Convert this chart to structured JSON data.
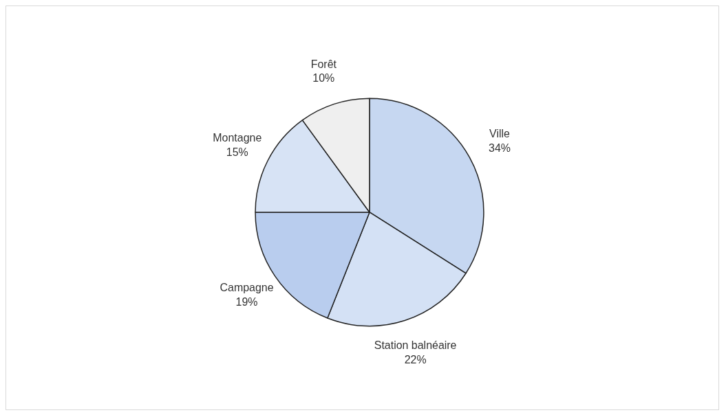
{
  "chart_data": {
    "type": "pie",
    "categories": [
      "Ville",
      "Station balnéaire",
      "Campagne",
      "Montagne",
      "Forêt"
    ],
    "values": [
      34,
      22,
      19,
      15,
      10
    ],
    "colors": [
      "#c6d7f1",
      "#d4e1f5",
      "#b9cdee",
      "#d7e3f5",
      "#efefef"
    ],
    "value_labels": [
      "34%",
      "22%",
      "19%",
      "15%",
      "10%"
    ],
    "legend": false
  }
}
